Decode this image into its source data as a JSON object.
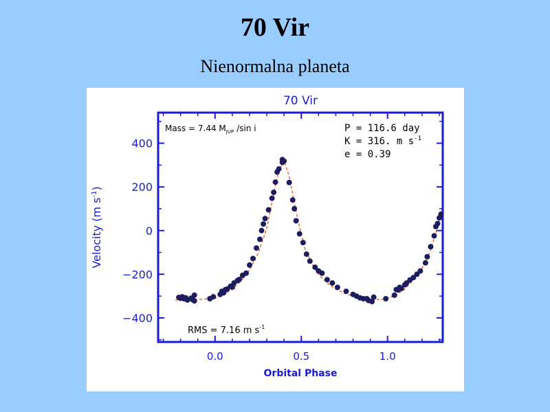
{
  "slide": {
    "title": "70 Vir",
    "subtitle": "Nienormalna planeta"
  },
  "chart_data": {
    "type": "scatter",
    "title": "70 Vir",
    "xlabel": "Orbital Phase",
    "ylabel": "Velocity   (m s",
    "ylabel_sup": "-1",
    "ylabel_close": ")",
    "xlim": [
      -0.33,
      1.32
    ],
    "ylim": [
      -510,
      540
    ],
    "x_ticks": [
      0.0,
      0.5,
      1.0
    ],
    "x_tick_labels": [
      "0.0",
      "0.5",
      "1.0"
    ],
    "y_ticks": [
      -400,
      -200,
      0,
      200,
      400
    ],
    "y_tick_labels": [
      "−400",
      "−200",
      "0",
      "200",
      "400"
    ],
    "grid": false,
    "annotations": {
      "mass_prefix": "Mass = 7.44 M",
      "mass_sub": "JUP",
      "mass_suffix": "/sin i",
      "period": "P = 116.6 day",
      "k_prefix": "K = 316. m s",
      "k_sup": "-1",
      "ecc": "e = 0.39",
      "rms_prefix": "RMS = 7.16 m s",
      "rms_sup": "-1"
    },
    "colors": {
      "axes": "#1a1adb",
      "points": "#1c1c5e",
      "fit": "#e06010",
      "text": "#000000"
    },
    "series": [
      {
        "type": "scatter",
        "points": [
          [
            -0.21,
            -306
          ],
          [
            -0.2,
            -310
          ],
          [
            -0.19,
            -303
          ],
          [
            -0.18,
            -312
          ],
          [
            -0.17,
            -308
          ],
          [
            -0.16,
            -318
          ],
          [
            -0.14,
            -310
          ],
          [
            -0.13,
            -316
          ],
          [
            -0.12,
            -296
          ],
          [
            -0.12,
            -322
          ],
          [
            -0.03,
            -312
          ],
          [
            -0.01,
            -303
          ],
          [
            0.03,
            -292
          ],
          [
            0.04,
            -278
          ],
          [
            0.05,
            -285
          ],
          [
            0.06,
            -270
          ],
          [
            0.07,
            -268
          ],
          [
            0.09,
            -255
          ],
          [
            0.1,
            -259
          ],
          [
            0.11,
            -240
          ],
          [
            0.13,
            -229
          ],
          [
            0.14,
            -224
          ],
          [
            0.16,
            -205
          ],
          [
            0.18,
            -195
          ],
          [
            0.2,
            -158
          ],
          [
            0.22,
            -128
          ],
          [
            0.24,
            -80
          ],
          [
            0.26,
            -40
          ],
          [
            0.27,
            0
          ],
          [
            0.28,
            30
          ],
          [
            0.29,
            55
          ],
          [
            0.31,
            95
          ],
          [
            0.33,
            148
          ],
          [
            0.34,
            175
          ],
          [
            0.35,
            222
          ],
          [
            0.36,
            268
          ],
          [
            0.37,
            282
          ],
          [
            0.39,
            312
          ],
          [
            0.39,
            325
          ],
          [
            0.4,
            318
          ],
          [
            0.43,
            220
          ],
          [
            0.45,
            140
          ],
          [
            0.46,
            100
          ],
          [
            0.47,
            45
          ],
          [
            0.49,
            -15
          ],
          [
            0.51,
            -55
          ],
          [
            0.53,
            -108
          ],
          [
            0.55,
            -140
          ],
          [
            0.58,
            -168
          ],
          [
            0.6,
            -185
          ],
          [
            0.62,
            -195
          ],
          [
            0.65,
            -225
          ],
          [
            0.68,
            -240
          ],
          [
            0.71,
            -260
          ],
          [
            0.76,
            -278
          ],
          [
            0.8,
            -292
          ],
          [
            0.82,
            -300
          ],
          [
            0.84,
            -308
          ],
          [
            0.86,
            -312
          ],
          [
            0.88,
            -312
          ],
          [
            0.89,
            -320
          ],
          [
            0.91,
            -325
          ],
          [
            0.92,
            -305
          ],
          [
            0.99,
            -312
          ],
          [
            1.04,
            -296
          ],
          [
            1.05,
            -270
          ],
          [
            1.06,
            -272
          ],
          [
            1.07,
            -260
          ],
          [
            1.08,
            -265
          ],
          [
            1.1,
            -248
          ],
          [
            1.11,
            -240
          ],
          [
            1.13,
            -226
          ],
          [
            1.15,
            -215
          ],
          [
            1.17,
            -200
          ],
          [
            1.19,
            -185
          ],
          [
            1.22,
            -148
          ],
          [
            1.23,
            -120
          ],
          [
            1.25,
            -74
          ],
          [
            1.27,
            -24
          ],
          [
            1.28,
            18
          ],
          [
            1.29,
            32
          ],
          [
            1.3,
            58
          ],
          [
            1.31,
            75
          ]
        ]
      },
      {
        "type": "line",
        "style": "dashed",
        "points": [
          [
            -0.23,
            -318
          ],
          [
            -0.1,
            -316
          ],
          [
            0.0,
            -310
          ],
          [
            0.05,
            -292
          ],
          [
            0.1,
            -268
          ],
          [
            0.15,
            -232
          ],
          [
            0.2,
            -180
          ],
          [
            0.25,
            -105
          ],
          [
            0.3,
            10
          ],
          [
            0.34,
            170
          ],
          [
            0.37,
            275
          ],
          [
            0.4,
            318
          ],
          [
            0.43,
            248
          ],
          [
            0.46,
            125
          ],
          [
            0.49,
            15
          ],
          [
            0.52,
            -80
          ],
          [
            0.56,
            -150
          ],
          [
            0.6,
            -200
          ],
          [
            0.65,
            -240
          ],
          [
            0.7,
            -268
          ],
          [
            0.75,
            -287
          ],
          [
            0.8,
            -300
          ],
          [
            0.85,
            -309
          ],
          [
            0.9,
            -313
          ],
          [
            0.95,
            -316
          ],
          [
            1.0,
            -312
          ],
          [
            1.05,
            -295
          ],
          [
            1.1,
            -268
          ],
          [
            1.15,
            -226
          ],
          [
            1.2,
            -172
          ],
          [
            1.25,
            -90
          ],
          [
            1.28,
            -10
          ],
          [
            1.3,
            50
          ],
          [
            1.32,
            95
          ]
        ]
      }
    ]
  }
}
